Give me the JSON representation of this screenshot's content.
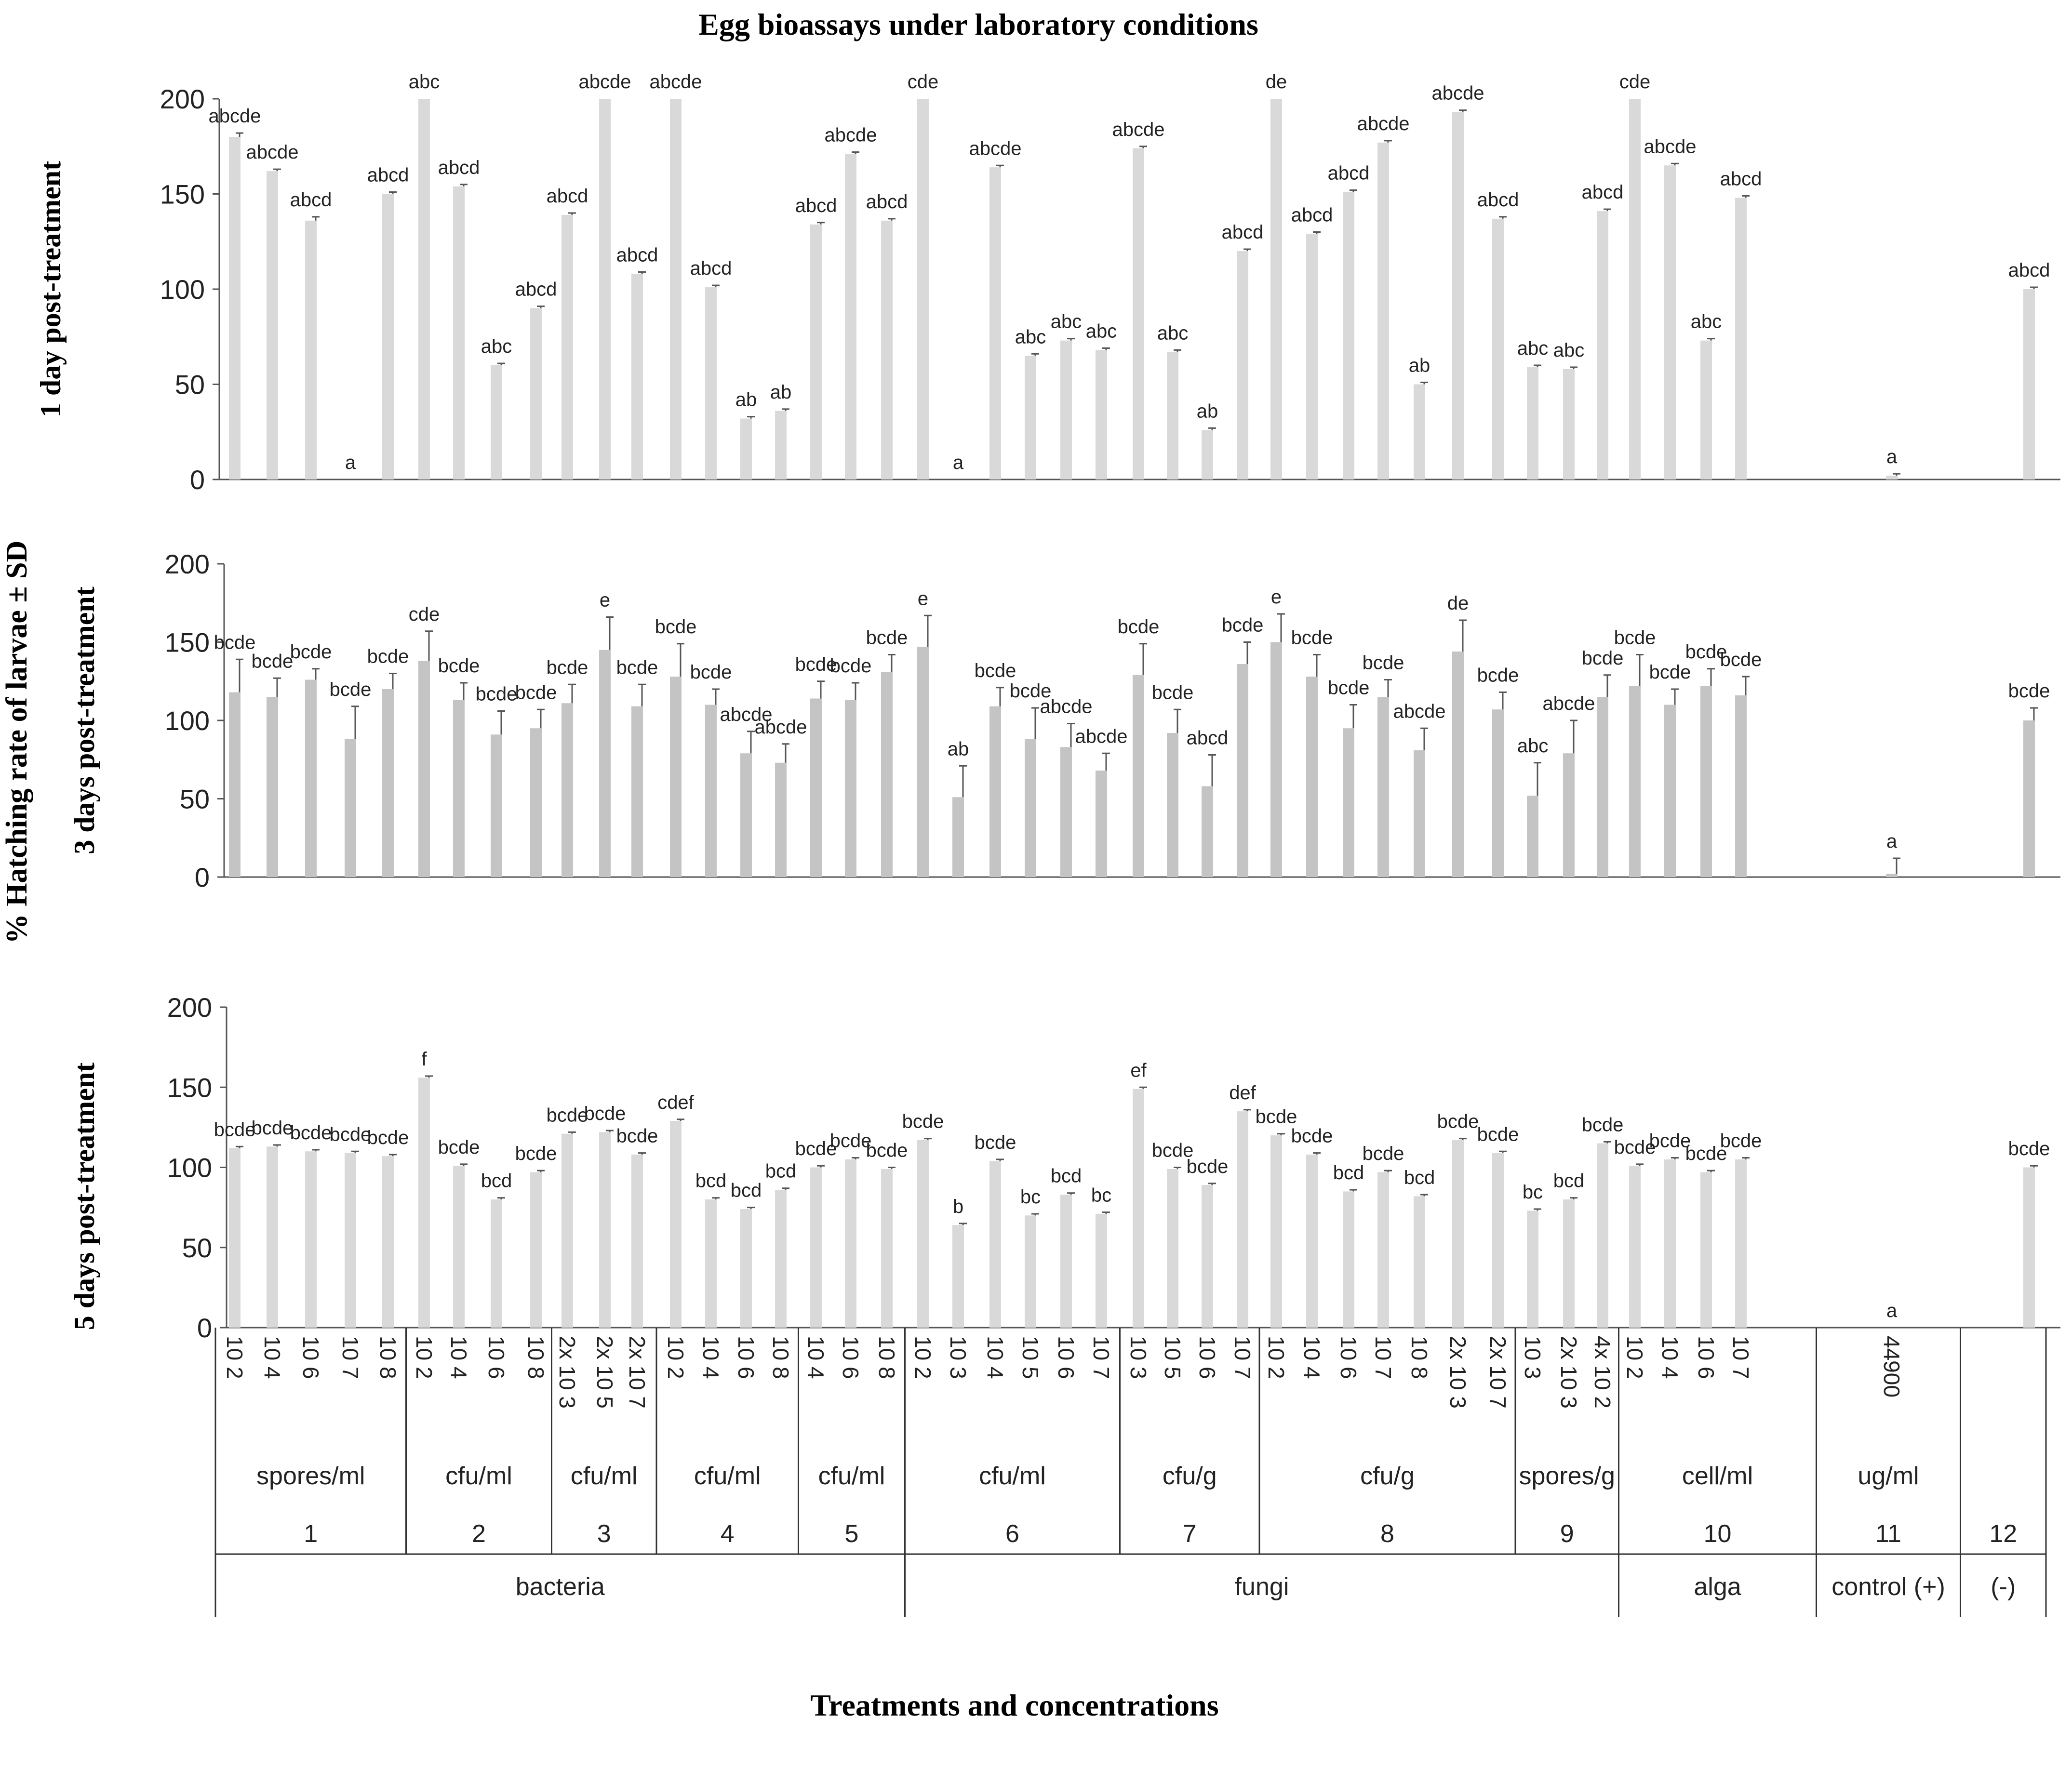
{
  "chart_data": {
    "type": "bar",
    "title": "Egg bioassays under laboratory conditions",
    "ylabel": "% Hatching rate of larvae ± SD",
    "xlabel": "Treatments and concentrations",
    "ylim": [
      0,
      200
    ],
    "yticks": [
      0,
      50,
      100,
      150,
      200
    ],
    "panels": [
      {
        "label": "1 day post-treatment",
        "bar_color": "#d9d9d9",
        "values": [
          180,
          162,
          136,
          0,
          150,
          200,
          154,
          60,
          90,
          139,
          200,
          108,
          200,
          101,
          32,
          36,
          134,
          171,
          136,
          200,
          0,
          164,
          65,
          73,
          68,
          174,
          67,
          26,
          120,
          200,
          129,
          151,
          177,
          50,
          193,
          137,
          59,
          58,
          141,
          200,
          165,
          73,
          148,
          2,
          100
        ],
        "sd": [
          2,
          1,
          2,
          0,
          1,
          0,
          1,
          1,
          1,
          1,
          0,
          1,
          0,
          1,
          1,
          1,
          1,
          1,
          1,
          0,
          0,
          1,
          1,
          1,
          1,
          1,
          1,
          1,
          1,
          0,
          1,
          1,
          1,
          1,
          1,
          1,
          1,
          1,
          1,
          0,
          1,
          1,
          1,
          1,
          1
        ],
        "letters": [
          "abcde",
          "abcde",
          "abcd",
          "a",
          "abcd",
          "abc",
          "abcd",
          "abc",
          "abcd",
          "abcd",
          "abcde",
          "abcd",
          "abcde",
          "abcd",
          "ab",
          "ab",
          "abcd",
          "abcde",
          "abcd",
          "cde",
          "a",
          "abcde",
          "abc",
          "abc",
          "abc",
          "abcde",
          "abc",
          "ab",
          "abcd",
          "de",
          "abcd",
          "abcd",
          "abcde",
          "ab",
          "abcde",
          "abcd",
          "abc",
          "abc",
          "abcd",
          "cde",
          "abcde",
          "abc",
          "abcd",
          "a",
          "abcd"
        ]
      },
      {
        "label": "3 days post-treatment",
        "bar_color": "#c4c4c4",
        "values": [
          118,
          115,
          126,
          88,
          120,
          138,
          113,
          91,
          95,
          111,
          145,
          109,
          128,
          110,
          79,
          73,
          114,
          113,
          131,
          147,
          51,
          109,
          88,
          83,
          68,
          129,
          92,
          58,
          136,
          150,
          128,
          95,
          115,
          81,
          144,
          107,
          52,
          79,
          115,
          122,
          110,
          122,
          116,
          2,
          100
        ],
        "sd": [
          21,
          12,
          7,
          21,
          10,
          19,
          11,
          15,
          12,
          12,
          21,
          14,
          21,
          10,
          14,
          12,
          11,
          11,
          11,
          20,
          20,
          12,
          20,
          15,
          11,
          20,
          15,
          20,
          14,
          18,
          14,
          15,
          11,
          14,
          20,
          11,
          21,
          21,
          14,
          20,
          10,
          11,
          12,
          10,
          8
        ],
        "letters": [
          "bcde",
          "bcde",
          "bcde",
          "bcde",
          "bcde",
          "cde",
          "bcde",
          "bcde",
          "bcde",
          "bcde",
          "e",
          "bcde",
          "bcde",
          "bcde",
          "abcde",
          "abcde",
          "bcde",
          "bcde",
          "bcde",
          "e",
          "ab",
          "bcde",
          "bcde",
          "abcde",
          "abcde",
          "bcde",
          "bcde",
          "abcd",
          "bcde",
          "e",
          "bcde",
          "bcde",
          "bcde",
          "abcde",
          "de",
          "bcde",
          "abc",
          "abcde",
          "bcde",
          "bcde",
          "bcde",
          "bcde",
          "bcde",
          "a",
          "bcde"
        ]
      },
      {
        "label": "5 days post-treatment",
        "bar_color": "#d9d9d9",
        "values": [
          112,
          113,
          110,
          109,
          107,
          156,
          101,
          80,
          97,
          121,
          122,
          108,
          129,
          80,
          74,
          86,
          100,
          105,
          99,
          117,
          64,
          104,
          70,
          83,
          71,
          149,
          99,
          89,
          135,
          120,
          108,
          85,
          97,
          82,
          117,
          109,
          73,
          80,
          115,
          101,
          105,
          97,
          105,
          0,
          100
        ],
        "sd": [
          1,
          1,
          1,
          1,
          1,
          1,
          1,
          1,
          1,
          1,
          1,
          1,
          1,
          1,
          1,
          1,
          1,
          1,
          1,
          1,
          1,
          1,
          1,
          1,
          1,
          1,
          1,
          1,
          1,
          1,
          1,
          1,
          1,
          1,
          1,
          1,
          1,
          1,
          1,
          1,
          1,
          1,
          1,
          0,
          1
        ],
        "letters": [
          "bcde",
          "bcde",
          "bcde",
          "bcde",
          "bcde",
          "f",
          "bcde",
          "bcd",
          "bcde",
          "bcde",
          "bcde",
          "bcde",
          "cdef",
          "bcd",
          "bcd",
          "bcd",
          "bcde",
          "bcde",
          "bcde",
          "bcde",
          "b",
          "bcde",
          "bc",
          "bcd",
          "bc",
          "ef",
          "bcde",
          "bcde",
          "def",
          "bcde",
          "bcde",
          "bcd",
          "bcde",
          "bcd",
          "bcde",
          "bcde",
          "bc",
          "bcd",
          "bcde",
          "bcde",
          "bcde",
          "bcde",
          "bcde",
          "a",
          "bcde"
        ]
      }
    ],
    "categories": [
      "10 2",
      "10 4",
      "10 6",
      "10 7",
      "10 8",
      "10 2",
      "10 4",
      "10 6",
      "10 8",
      "2x 10 3",
      "2x 10 5",
      "2x 10 7",
      "10 2",
      "10 4",
      "10 6",
      "10 8",
      "10 4",
      "10 6",
      "10 8",
      "10 2",
      "10 3",
      "10 4",
      "10 5",
      "10 6",
      "10 7",
      "10 3",
      "10 5",
      "10 6",
      "10 7",
      "10 2",
      "10 4",
      "10 6",
      "10 7",
      "10 8",
      "2x 10 3",
      "2x 10 7",
      "10 3",
      "2x 10 3",
      "4x 10 2",
      "10 2",
      "10 4",
      "10 6",
      "10 7",
      "44900",
      ""
    ],
    "units": [
      {
        "label": "spores/ml",
        "treatment": "1",
        "count": 5
      },
      {
        "label": "cfu/ml",
        "treatment": "2",
        "count": 4
      },
      {
        "label": "cfu/ml",
        "treatment": "3",
        "count": 3
      },
      {
        "label": "cfu/ml",
        "treatment": "4",
        "count": 4
      },
      {
        "label": "cfu/ml",
        "treatment": "5",
        "count": 3
      },
      {
        "label": "cfu/ml",
        "treatment": "6",
        "count": 6
      },
      {
        "label": "cfu/g",
        "treatment": "7",
        "count": 4
      },
      {
        "label": "cfu/g",
        "treatment": "8",
        "count": 7
      },
      {
        "label": "spores/g",
        "treatment": "9",
        "count": 3
      },
      {
        "label": "cell/ml",
        "treatment": "10",
        "count": 4
      },
      {
        "label": "ug/ml",
        "treatment": "11",
        "count": 1
      },
      {
        "label": "",
        "treatment": "12",
        "count": 1
      }
    ],
    "groups": [
      {
        "label": "bacteria",
        "count": 19
      },
      {
        "label": "fungi",
        "count": 20
      },
      {
        "label": "alga",
        "count": 4
      },
      {
        "label": "control (+)",
        "count": 1
      },
      {
        "label": "(-)",
        "count": 1
      }
    ]
  }
}
